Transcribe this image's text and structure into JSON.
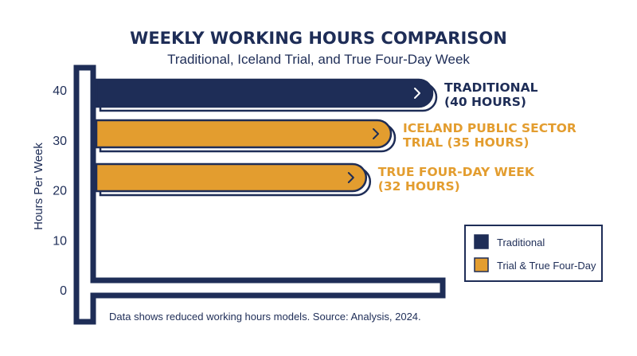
{
  "chart_data": {
    "type": "bar",
    "orientation": "horizontal",
    "title": "WEEKLY WORKING HOURS COMPARISON",
    "subtitle": "Traditional, Iceland Trial, and True Four-Day Week",
    "ylabel": "Hours Per Week",
    "yticks": [
      40,
      30,
      20,
      10,
      0
    ],
    "ylim": [
      0,
      40
    ],
    "bars": [
      {
        "label_lines": [
          "TRADITIONAL",
          "(40 HOURS)"
        ],
        "value": 40,
        "color": "#1e2d57"
      },
      {
        "label_lines": [
          "ICELAND PUBLIC SECTOR",
          "TRIAL (35 HOURS)"
        ],
        "value": 35,
        "color": "#e39d2f"
      },
      {
        "label_lines": [
          "TRUE FOUR-DAY WEEK",
          "(32 HOURS)"
        ],
        "value": 32,
        "color": "#e39d2f"
      }
    ],
    "legend": {
      "position": "right",
      "items": [
        {
          "label": "Traditional",
          "color": "#1e2d57"
        },
        {
          "label": "Trial & True Four-Day",
          "color": "#e39d2f"
        }
      ]
    },
    "note": "Data shows reduced working hours models. Source: Analysis, 2024.",
    "grid": false
  },
  "colors": {
    "navy": "#1e2d57",
    "gold": "#e39d2f"
  },
  "icons": {
    "bar_end": "chevron-right-icon"
  }
}
